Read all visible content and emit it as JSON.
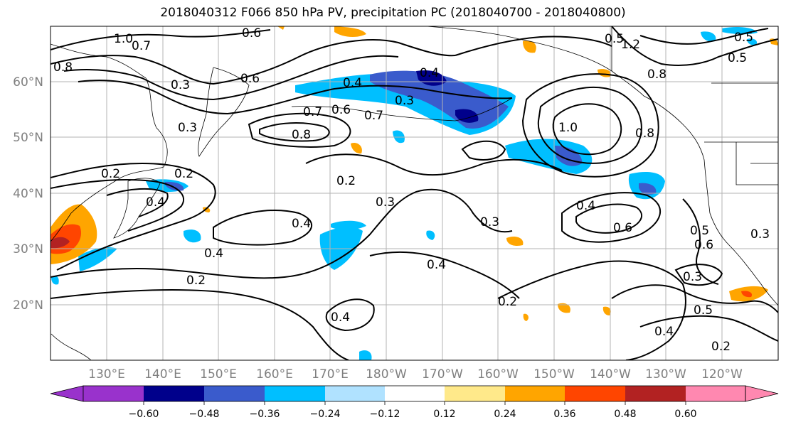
{
  "title": "2018040312 F066 850 hPa PV, precipitation PC (2018040700 - 2018040800)",
  "map": {
    "lat_labels": [
      "60°N",
      "50°N",
      "40°N",
      "30°N",
      "20°N"
    ],
    "lon_labels": [
      "130°E",
      "140°E",
      "150°E",
      "160°E",
      "170°E",
      "180°W",
      "170°W",
      "160°W",
      "150°W",
      "140°W",
      "130°W",
      "120°W"
    ],
    "contour_labels": [
      "1.0",
      "0.7",
      "0.6",
      "0.8",
      "0.3",
      "0.4",
      "0.3",
      "0.7",
      "0.6",
      "0.7",
      "0.8",
      "0.2",
      "0.4",
      "0.5",
      "0.8",
      "1.0",
      "0.8",
      "1.2",
      "0.5",
      "0.5",
      "0.6",
      "0.4",
      "0.2",
      "0.3",
      "0.4",
      "0.4",
      "0.3",
      "0.4",
      "0.2",
      "0.4",
      "0.2",
      "0.2",
      "0.3",
      "0.6",
      "0.5",
      "0.4",
      "0.6",
      "0.3",
      "0.5",
      "0.4",
      "0.2",
      "0.3"
    ]
  },
  "colorbar": {
    "tick_labels": [
      "−0.60",
      "−0.48",
      "−0.36",
      "−0.24",
      "−0.12",
      "0.12",
      "0.24",
      "0.36",
      "0.48",
      "0.60"
    ],
    "colors": [
      "#9932cc",
      "#00008b",
      "#3a5bcc",
      "#00bfff",
      "#b0e2ff",
      "#ffffff",
      "#ffe98a",
      "#ffa500",
      "#ff4500",
      "#b22222",
      "#ff88b0"
    ]
  }
}
